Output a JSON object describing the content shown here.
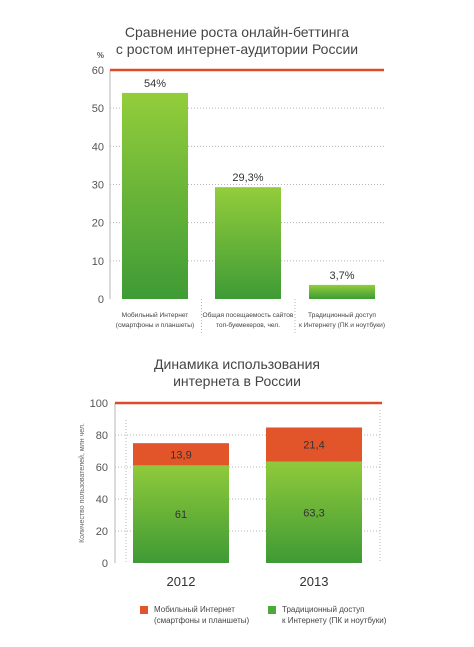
{
  "colors": {
    "bar_green_light": "#8fca3a",
    "bar_green_dark": "#3f9a35",
    "mobile_orange": "#e2552b",
    "top_line": "#dd4a26",
    "grid": "#b5b5b5",
    "axis_text": "#555555"
  },
  "chart_data": [
    {
      "type": "bar",
      "title": "Сравнение роста онлайн-беттинга с ростом интернет-аудитории России",
      "title_lines": [
        "Сравнение роста онлайн-беттинга",
        "с ростом интернет-аудитории России"
      ],
      "ylabel": "%",
      "ylim": [
        0,
        60
      ],
      "yticks": [
        "0",
        "10",
        "20",
        "30",
        "40",
        "50",
        "60"
      ],
      "categories": [
        [
          "Мобильный Интернет",
          "(смартфоны и планшеты)"
        ],
        [
          "Общая посещаемость сайтов",
          "топ-букмекеров, чел."
        ],
        [
          "Традиционный доступ",
          "к Интернету (ПК и ноутбуки)"
        ]
      ],
      "values": [
        54,
        29.3,
        3.7
      ],
      "value_labels": [
        "54%",
        "29,3%",
        "3,7%"
      ],
      "grid": true
    },
    {
      "type": "bar",
      "stacked": true,
      "title": "Динамика использования интернета в России",
      "title_lines": [
        "Динамика использования",
        "интернета в России"
      ],
      "ylabel": "Количество пользователей, млн чел.",
      "ylim": [
        0,
        100
      ],
      "yticks": [
        "0",
        "20",
        "40",
        "60",
        "80",
        "100"
      ],
      "categories": [
        "2012",
        "2013"
      ],
      "series": [
        {
          "name": "Традиционный доступ к Интернету (ПК и ноутбуки)",
          "values": [
            61,
            63.3
          ],
          "labels": [
            "61",
            "63,3"
          ]
        },
        {
          "name": "Мобильный Интернет (смартфоны и планшеты)",
          "values": [
            13.9,
            21.4
          ],
          "labels": [
            "13,9",
            "21,4"
          ]
        }
      ],
      "legend": [
        {
          "lines": [
            "Мобильный Интернет",
            "(смартфоны и планшеты)"
          ],
          "color": "#e2552b"
        },
        {
          "lines": [
            "Традиционный доступ",
            "к Интернету (ПК и ноутбуки)"
          ],
          "color": "#4fa83a"
        }
      ],
      "legend_position": "bottom",
      "grid": true
    }
  ]
}
